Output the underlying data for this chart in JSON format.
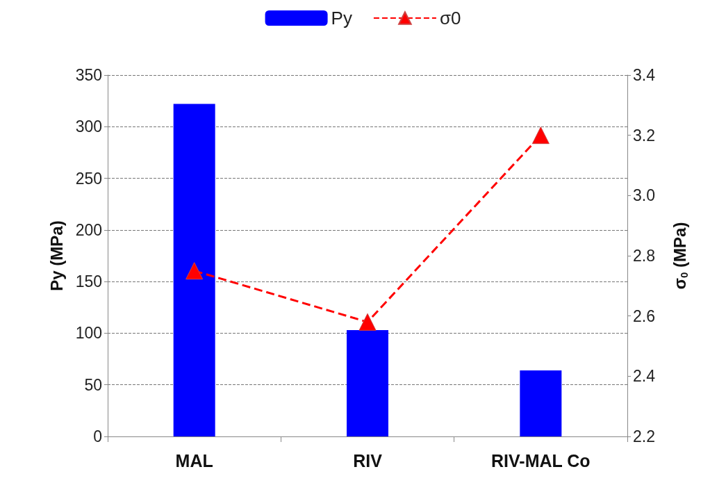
{
  "chart_data": {
    "type": "bar",
    "categories": [
      "MAL",
      "RIV",
      "RIV-MAL Co"
    ],
    "series": [
      {
        "name": "Py",
        "color": "#0000ff",
        "values": [
          322,
          103,
          64
        ]
      },
      {
        "name": "σ0",
        "type": "line",
        "axis": "y2",
        "color": "#ff0000",
        "values": [
          2.75,
          2.58,
          3.2
        ],
        "marker": "triangle",
        "line_style": "dashed"
      }
    ],
    "ylabel": "Py (MPa)",
    "y2label": "σ$_{0}$ (MPa)",
    "ylim": [
      0,
      350
    ],
    "yticks": [
      0,
      50,
      100,
      150,
      200,
      250,
      300,
      350
    ],
    "y2lim": [
      2.2,
      3.4
    ],
    "y2ticks": [
      {
        "value": 2.2,
        "label": "2.2"
      },
      {
        "value": 2.4,
        "label": "2.4"
      },
      {
        "value": 2.6,
        "label": "2.6"
      },
      {
        "value": 2.8,
        "label": "2.8"
      },
      {
        "value": 3.0,
        "label": "3.0"
      },
      {
        "value": 3.2,
        "label": "3.2"
      },
      {
        "value": 3.4,
        "label": "3.4"
      }
    ],
    "grid": "y",
    "legend": "top"
  }
}
